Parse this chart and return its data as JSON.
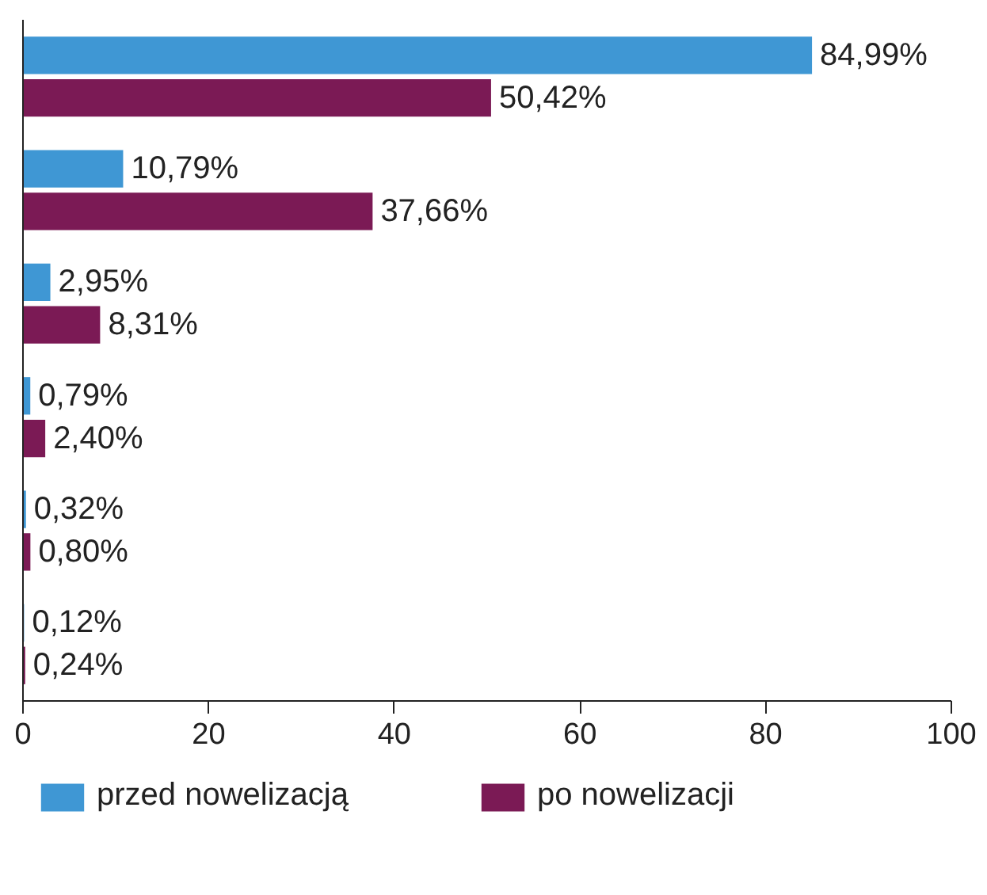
{
  "chart_data": {
    "type": "bar",
    "orientation": "horizontal",
    "categories": [
      null,
      null,
      null,
      null,
      null,
      null
    ],
    "series": [
      {
        "name": "przed nowelizacją",
        "color": "#3f97d4",
        "values": [
          84.99,
          10.79,
          2.95,
          0.79,
          0.32,
          0.12
        ],
        "value_labels": [
          "84,99%",
          "10,79%",
          "2,95%",
          "0,79%",
          "0,32%",
          "0,12%"
        ]
      },
      {
        "name": "po nowelizacji",
        "color": "#7b1a55",
        "values": [
          50.42,
          37.66,
          8.31,
          2.4,
          0.8,
          0.24
        ],
        "value_labels": [
          "50,42%",
          "37,66%",
          "8,31%",
          "2,40%",
          "0,80%",
          "0,24%"
        ]
      }
    ],
    "xlim": [
      0,
      100
    ],
    "xticks": [
      0,
      20,
      40,
      60,
      80,
      100
    ],
    "grid": false,
    "legend": "bottom",
    "tick_labels": "x"
  }
}
